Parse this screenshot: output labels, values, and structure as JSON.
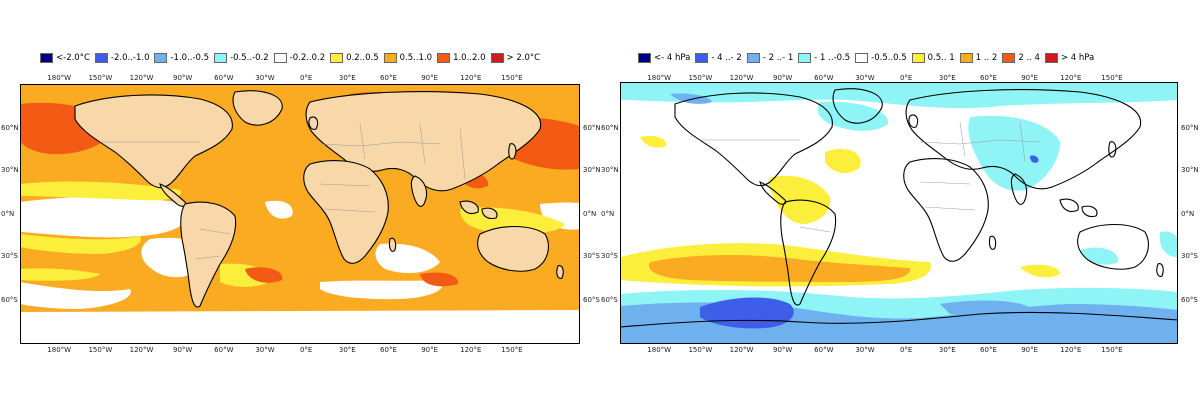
{
  "left_map": {
    "legend": [
      {
        "label": "<-2.0°C",
        "color": "#000080"
      },
      {
        "label": "-2.0..-1.0",
        "color": "#3e5de8"
      },
      {
        "label": "-1.0..-0.5",
        "color": "#6fb0ee"
      },
      {
        "label": "-0.5..-0.2",
        "color": "#8ff4f6"
      },
      {
        "label": "-0.2..0.2",
        "color": "#ffffff"
      },
      {
        "label": "0.2..0.5",
        "color": "#fbef3c"
      },
      {
        "label": "0.5..1.0",
        "color": "#fbab22"
      },
      {
        "label": "1.0..2.0",
        "color": "#f35b15"
      },
      {
        "label": "> 2.0°C",
        "color": "#d01c1c"
      }
    ],
    "land_color": "#f8d8a8"
  },
  "right_map": {
    "legend": [
      {
        "label": "<- 4 hPa",
        "color": "#000080"
      },
      {
        "label": "- 4 ..- 2",
        "color": "#3e5de8"
      },
      {
        "label": "- 2 ..- 1",
        "color": "#6fb0ee"
      },
      {
        "label": "- 1 ..-0.5",
        "color": "#8ff4f6"
      },
      {
        "label": "-0.5..0.5",
        "color": "#ffffff"
      },
      {
        "label": "0.5.. 1",
        "color": "#fbef3c"
      },
      {
        "label": "1 .. 2",
        "color": "#fbab22"
      },
      {
        "label": "2 .. 4",
        "color": "#f35b15"
      },
      {
        "label": "> 4 hPa",
        "color": "#d01c1c"
      }
    ]
  },
  "lon_ticks": [
    "180°W",
    "150°W",
    "120°W",
    "90°W",
    "60°W",
    "30°W",
    "0°E",
    "30°E",
    "60°E",
    "90°E",
    "120°E",
    "150°E"
  ],
  "lat_ticks": [
    "60°N",
    "30°N",
    "0°N",
    "30°S",
    "60°S"
  ]
}
